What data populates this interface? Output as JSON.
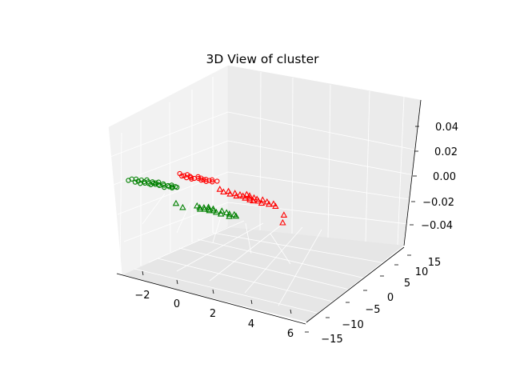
{
  "chart_data": {
    "type": "scatter",
    "projection": "3d",
    "title": "3D View of cluster",
    "xlabel": "",
    "ylabel": "",
    "zlabel": "",
    "grid": true,
    "legend": "none",
    "x_ticks": [
      "−2",
      "0",
      "2",
      "4",
      "6"
    ],
    "y_ticks": [
      "−15",
      "−10",
      "−5",
      "0",
      "5",
      "10",
      "15"
    ],
    "z_ticks": [
      "−0.04",
      "−0.02",
      "0.00",
      "0.02",
      "0.04"
    ],
    "series": [
      {
        "color": "#008000",
        "marker": "circle",
        "points": [
          [
            -2.7,
            -0.4
          ],
          [
            -2.6,
            0.1
          ],
          [
            -2.4,
            0.3
          ],
          [
            -2.3,
            -0.5
          ],
          [
            -2.2,
            -0.1
          ],
          [
            -2.1,
            0.3
          ],
          [
            -2.0,
            -0.6
          ],
          [
            -1.9,
            0.0
          ],
          [
            -1.85,
            0.6
          ],
          [
            -1.8,
            -0.3
          ],
          [
            -1.7,
            0.2
          ],
          [
            -1.6,
            -0.2
          ],
          [
            -1.5,
            0.4
          ],
          [
            -1.45,
            -0.4
          ],
          [
            -1.4,
            0.1
          ],
          [
            -1.3,
            0.3
          ],
          [
            -1.25,
            -0.1
          ],
          [
            -1.2,
            0.6
          ],
          [
            -1.1,
            0.0
          ],
          [
            -1.0,
            -0.2
          ],
          [
            -0.9,
            0.4
          ],
          [
            -0.8,
            0.1
          ],
          [
            -0.7,
            -0.4
          ],
          [
            -0.6,
            0.2
          ],
          [
            -0.5,
            0.0
          ],
          [
            -0.45,
            0.5
          ],
          [
            -0.35,
            0.1
          ],
          [
            -0.3,
            -0.2
          ],
          [
            -0.2,
            0.3
          ],
          [
            -0.1,
            0.2
          ]
        ]
      },
      {
        "color": "#ff0000",
        "marker": "circle",
        "points": [
          [
            -0.6,
            3.8
          ],
          [
            -0.4,
            3.3
          ],
          [
            -0.3,
            3.5
          ],
          [
            -0.2,
            3.9
          ],
          [
            -0.1,
            3.1
          ],
          [
            0.0,
            3.6
          ],
          [
            0.1,
            3.4
          ],
          [
            0.2,
            3.0
          ],
          [
            0.3,
            3.3
          ],
          [
            0.4,
            3.9
          ],
          [
            0.5,
            3.5
          ],
          [
            0.6,
            3.7
          ],
          [
            0.7,
            3.2
          ],
          [
            0.8,
            3.4
          ],
          [
            0.9,
            3.6
          ],
          [
            1.0,
            3.1
          ],
          [
            1.1,
            3.5
          ],
          [
            1.2,
            3.8
          ],
          [
            1.3,
            3.3
          ],
          [
            1.5,
            3.7
          ]
        ]
      },
      {
        "color": "#008000",
        "marker": "triangle",
        "points": [
          [
            0.6,
            -3.9
          ],
          [
            1.1,
            -4.6
          ],
          [
            1.7,
            -3.5
          ],
          [
            1.9,
            -3.8
          ],
          [
            2.0,
            -4.2
          ],
          [
            2.1,
            -3.6
          ],
          [
            2.2,
            -4.0
          ],
          [
            2.3,
            -3.3
          ],
          [
            2.4,
            -3.8
          ],
          [
            2.5,
            -4.1
          ],
          [
            2.6,
            -3.5
          ],
          [
            2.7,
            -3.9
          ],
          [
            2.9,
            -4.2
          ],
          [
            3.1,
            -3.6
          ],
          [
            3.2,
            -4.4
          ],
          [
            3.4,
            -3.8
          ],
          [
            3.6,
            -4.0
          ],
          [
            3.7,
            -4.6
          ],
          [
            3.85,
            -3.9
          ],
          [
            4.0,
            -4.2
          ]
        ]
      },
      {
        "color": "#ff0000",
        "marker": "triangle",
        "points": [
          [
            2.0,
            1.8
          ],
          [
            2.3,
            1.3
          ],
          [
            2.5,
            1.7
          ],
          [
            2.7,
            1.1
          ],
          [
            2.9,
            1.5
          ],
          [
            3.1,
            0.9
          ],
          [
            3.2,
            1.4
          ],
          [
            3.4,
            1.2
          ],
          [
            3.5,
            1.8
          ],
          [
            3.6,
            0.8
          ],
          [
            3.7,
            1.6
          ],
          [
            3.8,
            1.0
          ],
          [
            3.9,
            0.6
          ],
          [
            4.0,
            1.3
          ],
          [
            4.1,
            0.5
          ],
          [
            4.2,
            1.1
          ],
          [
            4.35,
            0.7
          ],
          [
            4.5,
            1.2
          ],
          [
            4.6,
            0.3
          ],
          [
            4.8,
            0.9
          ],
          [
            5.0,
            0.4
          ],
          [
            5.2,
            0.7
          ],
          [
            5.4,
            0.2
          ],
          [
            6.2,
            -1.6
          ],
          [
            6.5,
            -3.6
          ]
        ]
      }
    ]
  }
}
